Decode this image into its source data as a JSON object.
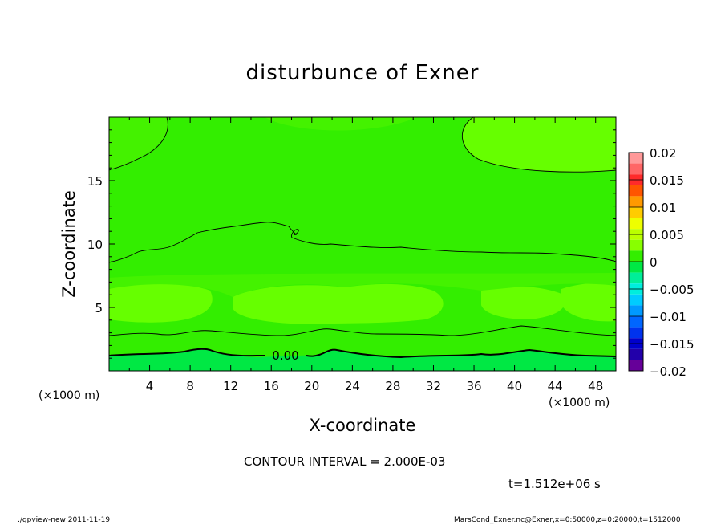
{
  "title": "disturbunce of Exner",
  "contour_interval": "CONTOUR INTERVAL = 2.000E-03",
  "time_label": "t=1.512e+06 s",
  "footer_left": "./gpview-new   2011-11-19",
  "footer_right": "MarsCond_Exner.nc@Exner,x=0:50000,z=0:20000,t=1512000",
  "colors": {
    "background_field": "#33ee00",
    "band_field": "#66ff00",
    "light_field": "#44f200",
    "low_field": "#00e844",
    "contour_line": "#000000"
  },
  "chart_data": {
    "type": "heatmap",
    "title": "disturbunce of Exner",
    "xlabel": "X-coordinate",
    "ylabel": "Z-coordinate",
    "x_unit": "(×1000 m)",
    "xlim": [
      0,
      50
    ],
    "ylim": [
      0,
      20
    ],
    "x_ticks": [
      4,
      8,
      12,
      16,
      20,
      24,
      28,
      32,
      36,
      40,
      44,
      48
    ],
    "y_ticks": [
      5,
      10,
      15
    ],
    "contour_label": "0.00",
    "colorbar": {
      "ticks": [
        "0.02",
        "0.015",
        "0.01",
        "0.005",
        "0",
        "−0.005",
        "−0.01",
        "−0.015",
        "−0.02"
      ],
      "levels": [
        {
          "from": 0.018,
          "to": 0.02,
          "color": "#ff9999"
        },
        {
          "from": 0.016,
          "to": 0.018,
          "color": "#ff6666"
        },
        {
          "from": 0.014,
          "to": 0.016,
          "color": "#ff2a2a"
        },
        {
          "from": 0.012,
          "to": 0.014,
          "color": "#ff5500"
        },
        {
          "from": 0.01,
          "to": 0.012,
          "color": "#ff9900"
        },
        {
          "from": 0.008,
          "to": 0.01,
          "color": "#ffcc00"
        },
        {
          "from": 0.006,
          "to": 0.008,
          "color": "#eeff00"
        },
        {
          "from": 0.004,
          "to": 0.006,
          "color": "#bbff00"
        },
        {
          "from": 0.002,
          "to": 0.004,
          "color": "#88ff00"
        },
        {
          "from": 0.0,
          "to": 0.002,
          "color": "#33ee00"
        },
        {
          "from": -0.002,
          "to": 0.0,
          "color": "#00e844"
        },
        {
          "from": -0.004,
          "to": -0.002,
          "color": "#00ee99"
        },
        {
          "from": -0.006,
          "to": -0.004,
          "color": "#00eedd"
        },
        {
          "from": -0.008,
          "to": -0.006,
          "color": "#00ccff"
        },
        {
          "from": -0.01,
          "to": -0.008,
          "color": "#0099ff"
        },
        {
          "from": -0.012,
          "to": -0.01,
          "color": "#0066ff"
        },
        {
          "from": -0.014,
          "to": -0.012,
          "color": "#0033ee"
        },
        {
          "from": -0.016,
          "to": -0.014,
          "color": "#0000cc"
        },
        {
          "from": -0.018,
          "to": -0.016,
          "color": "#2200aa"
        },
        {
          "from": -0.02,
          "to": -0.018,
          "color": "#660099"
        }
      ]
    }
  }
}
